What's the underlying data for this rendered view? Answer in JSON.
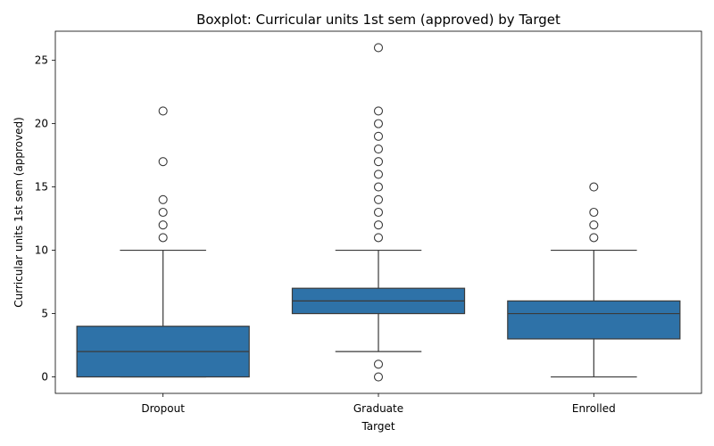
{
  "chart_data": {
    "type": "boxplot",
    "title": "Boxplot: Curricular units 1st sem (approved) by Target",
    "xlabel": "Target",
    "ylabel": "Curricular units 1st sem (approved)",
    "categories": [
      "Dropout",
      "Graduate",
      "Enrolled"
    ],
    "ylim": [
      -1.3,
      27.3
    ],
    "yticks": [
      0,
      5,
      10,
      15,
      20,
      25
    ],
    "grid": false,
    "box_color": "#2e72a8",
    "line_color": "#3a3a3a",
    "boxes": [
      {
        "category": "Dropout",
        "whisker_low": 0,
        "q1": 0,
        "median": 2,
        "q3": 4,
        "whisker_high": 10,
        "outliers": [
          11,
          12,
          13,
          14,
          17,
          21
        ]
      },
      {
        "category": "Graduate",
        "whisker_low": 2,
        "q1": 5,
        "median": 6,
        "q3": 7,
        "whisker_high": 10,
        "outliers": [
          0,
          1,
          11,
          12,
          13,
          14,
          15,
          16,
          17,
          18,
          19,
          20,
          21,
          26
        ]
      },
      {
        "category": "Enrolled",
        "whisker_low": 0,
        "q1": 3,
        "median": 5,
        "q3": 6,
        "whisker_high": 10,
        "outliers": [
          11,
          12,
          13,
          15
        ]
      }
    ]
  }
}
